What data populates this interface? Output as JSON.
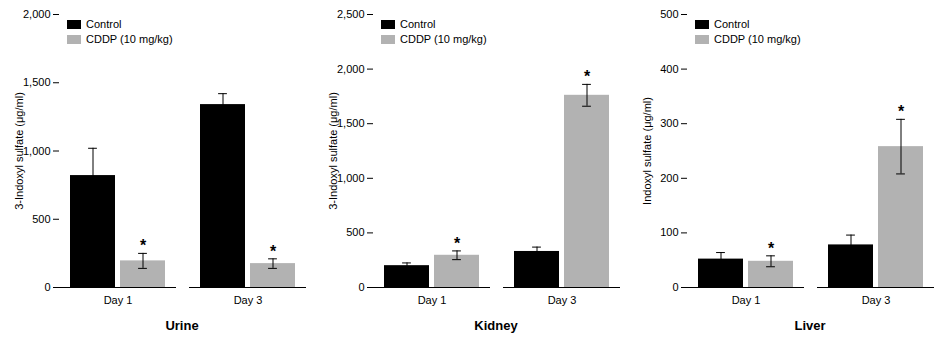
{
  "chart_data": [
    {
      "type": "bar",
      "title": "Urine",
      "ylabel": "3-Indoxyl sulfate (μg/ml)",
      "categories": [
        "Day 1",
        "Day 3"
      ],
      "series": [
        {
          "name": "Control",
          "color": "#000000",
          "values": [
            820,
            1340
          ],
          "errors": [
            200,
            80
          ]
        },
        {
          "name": "CDDP (10 mg/kg)",
          "color": "#b2b2b2",
          "values": [
            195,
            175
          ],
          "errors": [
            55,
            35
          ]
        }
      ],
      "annotations": [
        {
          "text": "*",
          "category": "Day 1",
          "series": "CDDP (10 mg/kg)"
        },
        {
          "text": "*",
          "category": "Day 3",
          "series": "CDDP (10 mg/kg)"
        }
      ],
      "ylim": [
        0,
        2000
      ],
      "yticks": [
        0,
        500,
        1000,
        1500,
        2000
      ],
      "legend": "upper left"
    },
    {
      "type": "bar",
      "title": "Kidney",
      "ylabel": "3-Indoxyl sulfate (μg/ml)",
      "categories": [
        "Day 1",
        "Day 3"
      ],
      "series": [
        {
          "name": "Control",
          "color": "#000000",
          "values": [
            200,
            330
          ],
          "errors": [
            25,
            40
          ]
        },
        {
          "name": "CDDP (10 mg/kg)",
          "color": "#b2b2b2",
          "values": [
            295,
            1760
          ],
          "errors": [
            40,
            100
          ]
        }
      ],
      "annotations": [
        {
          "text": "*",
          "category": "Day 1",
          "series": "CDDP (10 mg/kg)"
        },
        {
          "text": "*",
          "category": "Day 3",
          "series": "CDDP (10 mg/kg)"
        }
      ],
      "ylim": [
        0,
        2500
      ],
      "yticks": [
        0,
        500,
        1000,
        1500,
        2000,
        2500
      ],
      "legend": "upper left"
    },
    {
      "type": "bar",
      "title": "Liver",
      "ylabel": "Indoxyl sulfate (μg/ml)",
      "categories": [
        "Day 1",
        "Day 3"
      ],
      "series": [
        {
          "name": "Control",
          "color": "#000000",
          "values": [
            52,
            78
          ],
          "errors": [
            12,
            18
          ]
        },
        {
          "name": "CDDP (10 mg/kg)",
          "color": "#b2b2b2",
          "values": [
            48,
            258
          ],
          "errors": [
            10,
            50
          ]
        }
      ],
      "annotations": [
        {
          "text": "*",
          "category": "Day 1",
          "series": "CDDP (10 mg/kg)"
        },
        {
          "text": "*",
          "category": "Day 3",
          "series": "CDDP (10 mg/kg)"
        }
      ],
      "ylim": [
        0,
        500
      ],
      "yticks": [
        0,
        100,
        200,
        300,
        400,
        500
      ],
      "legend": "upper left"
    }
  ]
}
